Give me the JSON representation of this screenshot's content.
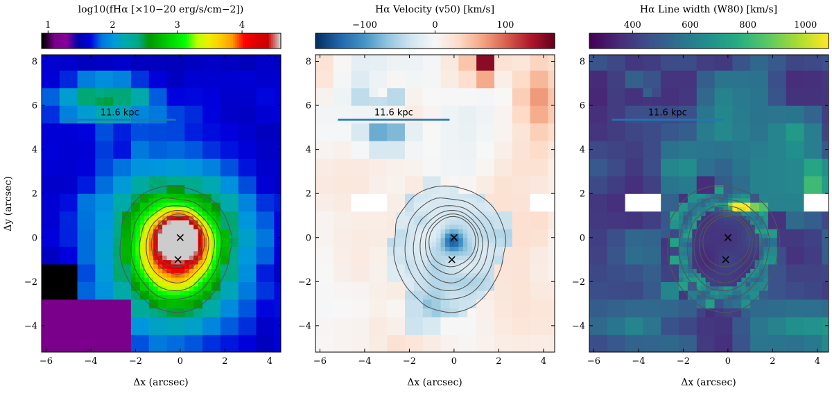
{
  "chart_data": [
    {
      "type": "heatmap",
      "panel": "flux",
      "colorbar_title": "log10(fHα [×10−20 erg/s/cm−2])",
      "colormap": "nipy_spectral",
      "color_range": [
        0.9,
        4.6
      ],
      "colorbar_ticks": [
        1,
        2,
        3,
        4
      ],
      "colorbar_tick_labels": [
        "1",
        "2",
        "3",
        "4"
      ],
      "xlabel": "Δx (arcsec)",
      "ylabel": "Δy (arcsec)",
      "xlim": [
        -6.2,
        4.5
      ],
      "ylim": [
        -5.2,
        8.3
      ],
      "xticks": [
        -6,
        -4,
        -2,
        0,
        2,
        4
      ],
      "xtick_labels": [
        "−6",
        "−4",
        "−2",
        "0",
        "2",
        "4"
      ],
      "yticks": [
        -4,
        -2,
        0,
        2,
        4,
        6,
        8
      ],
      "ytick_labels": [
        "−4",
        "−2",
        "0",
        "2",
        "4",
        "6",
        "8"
      ],
      "scale_bar": {
        "label": "11.6 kpc",
        "x0": -5.2,
        "x1": -0.2,
        "y": 5.35
      },
      "markers": [
        {
          "x": 0.0,
          "y": 0.0,
          "symbol": "x"
        },
        {
          "x": -0.1,
          "y": -1.0,
          "symbol": "x"
        }
      ],
      "peak_value": 4.4,
      "masked_regions": []
    },
    {
      "type": "heatmap",
      "panel": "velocity",
      "colorbar_title": "Hα Velocity (v50) [km/s]",
      "colormap": "RdBu_r",
      "color_range": [
        -170,
        170
      ],
      "colorbar_ticks": [
        -100,
        0,
        100
      ],
      "colorbar_tick_labels": [
        "−100",
        "0",
        "100"
      ],
      "xlabel": "Δx (arcsec)",
      "ylabel": "",
      "xlim": [
        -6.2,
        4.5
      ],
      "ylim": [
        -5.2,
        8.3
      ],
      "xticks": [
        -6,
        -4,
        -2,
        0,
        2,
        4
      ],
      "xtick_labels": [
        "−6",
        "−4",
        "−2",
        "0",
        "2",
        "4"
      ],
      "yticks": [
        -4,
        -2,
        0,
        2,
        4,
        6,
        8
      ],
      "ytick_labels": [
        "−4",
        "−2",
        "0",
        "2",
        "4",
        "6",
        "8"
      ],
      "scale_bar": {
        "label": "11.6 kpc",
        "x0": -5.2,
        "x1": -0.2,
        "y": 5.35
      },
      "markers": [
        {
          "x": 0.0,
          "y": 0.0,
          "symbol": "x"
        },
        {
          "x": -0.1,
          "y": -1.0,
          "symbol": "x"
        }
      ],
      "masked_regions": [
        {
          "x": -3.9,
          "y": 1.7
        },
        {
          "x": 4.3,
          "y": 1.6
        }
      ]
    },
    {
      "type": "heatmap",
      "panel": "width",
      "colorbar_title": "Hα Line width (W80) [km/s]",
      "colormap": "viridis",
      "color_range": [
        250,
        1080
      ],
      "colorbar_ticks": [
        400,
        600,
        800,
        1000
      ],
      "colorbar_tick_labels": [
        "400",
        "600",
        "800",
        "1000"
      ],
      "xlabel": "Δx (arcsec)",
      "ylabel": "",
      "xlim": [
        -6.2,
        4.5
      ],
      "ylim": [
        -5.2,
        8.3
      ],
      "xticks": [
        -6,
        -4,
        -2,
        0,
        2,
        4
      ],
      "xtick_labels": [
        "−6",
        "−4",
        "−2",
        "0",
        "2",
        "4"
      ],
      "yticks": [
        -4,
        -2,
        0,
        2,
        4,
        6,
        8
      ],
      "ytick_labels": [
        "−4",
        "−2",
        "0",
        "2",
        "4",
        "6",
        "8"
      ],
      "scale_bar": {
        "label": "11.6 kpc",
        "x0": -5.2,
        "x1": -0.2,
        "y": 5.35
      },
      "markers": [
        {
          "x": 0.0,
          "y": 0.0,
          "symbol": "x"
        },
        {
          "x": -0.1,
          "y": -1.0,
          "symbol": "x"
        }
      ],
      "masked_regions": [
        {
          "x": -3.9,
          "y": 1.7
        },
        {
          "x": 4.3,
          "y": 1.6
        }
      ]
    }
  ],
  "contour_levels_log_flux": [
    2.5,
    2.9,
    3.25,
    3.6,
    3.95,
    4.25
  ],
  "tile_size_arcsec": 0.2,
  "colors": {
    "contour": "#555555",
    "scale_bar": "#1f77b4",
    "marker": "#000000",
    "masked": "#ffffff"
  }
}
